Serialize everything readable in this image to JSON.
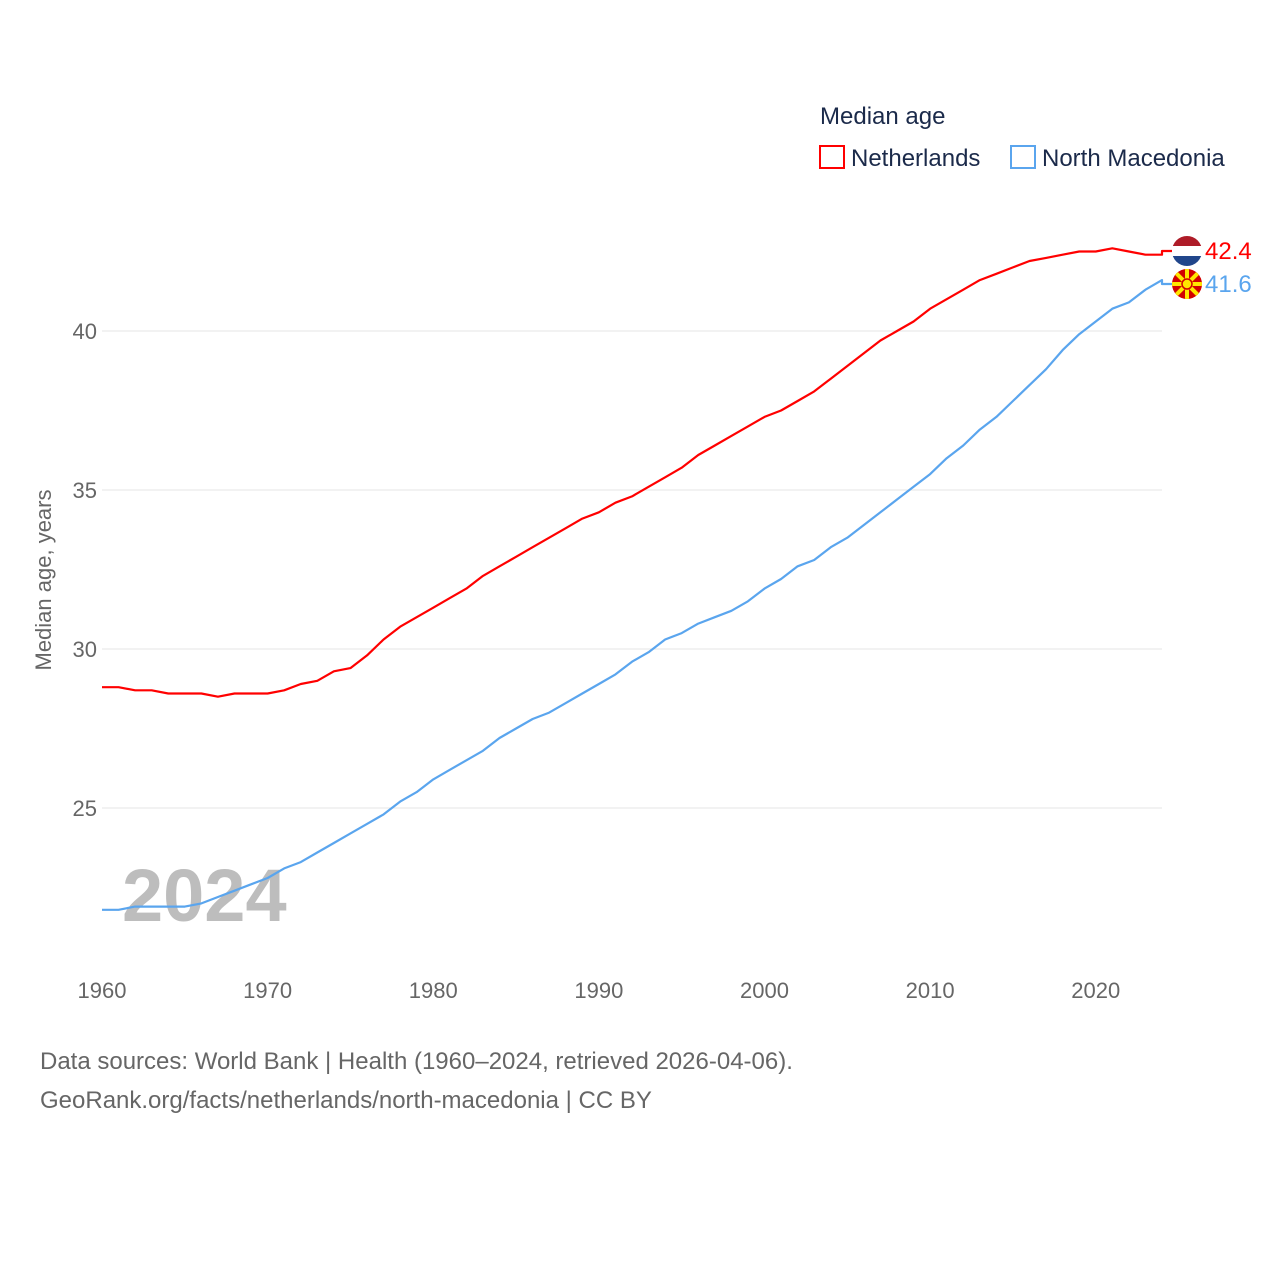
{
  "chart_data": {
    "type": "line",
    "title": "Median age",
    "ylabel": "Median age, years",
    "xlabel": "",
    "xlim": [
      1960,
      2024
    ],
    "ylim": [
      21,
      43
    ],
    "grid": true,
    "legend_position": "top-right",
    "year_overlay": "2024",
    "xticks": [
      "1960",
      "1970",
      "1980",
      "1990",
      "2000",
      "2010",
      "2020"
    ],
    "yticks": [
      "25",
      "30",
      "35",
      "40"
    ],
    "x": [
      1960,
      1961,
      1962,
      1963,
      1964,
      1965,
      1966,
      1967,
      1968,
      1969,
      1970,
      1971,
      1972,
      1973,
      1974,
      1975,
      1976,
      1977,
      1978,
      1979,
      1980,
      1981,
      1982,
      1983,
      1984,
      1985,
      1986,
      1987,
      1988,
      1989,
      1990,
      1991,
      1992,
      1993,
      1994,
      1995,
      1996,
      1997,
      1998,
      1999,
      2000,
      2001,
      2002,
      2003,
      2004,
      2005,
      2006,
      2007,
      2008,
      2009,
      2010,
      2011,
      2012,
      2013,
      2014,
      2015,
      2016,
      2017,
      2018,
      2019,
      2020,
      2021,
      2022,
      2023,
      2024
    ],
    "series": [
      {
        "name": "Netherlands",
        "color": "#ff0000",
        "end_label": "42.4",
        "values": [
          28.8,
          28.8,
          28.7,
          28.7,
          28.6,
          28.6,
          28.6,
          28.5,
          28.6,
          28.6,
          28.6,
          28.7,
          28.9,
          29.0,
          29.3,
          29.4,
          29.8,
          30.3,
          30.7,
          31.0,
          31.3,
          31.6,
          31.9,
          32.3,
          32.6,
          32.9,
          33.2,
          33.5,
          33.8,
          34.1,
          34.3,
          34.6,
          34.8,
          35.1,
          35.4,
          35.7,
          36.1,
          36.4,
          36.7,
          37.0,
          37.3,
          37.5,
          37.8,
          38.1,
          38.5,
          38.9,
          39.3,
          39.7,
          40.0,
          40.3,
          40.7,
          41.0,
          41.3,
          41.6,
          41.8,
          42.0,
          42.2,
          42.3,
          42.4,
          42.5,
          42.5,
          42.6,
          42.5,
          42.4,
          42.4
        ]
      },
      {
        "name": "North Macedonia",
        "color": "#5aa5ee",
        "end_label": "41.6",
        "values": [
          21.8,
          21.8,
          21.9,
          21.9,
          21.9,
          21.9,
          22.0,
          22.2,
          22.4,
          22.6,
          22.8,
          23.1,
          23.3,
          23.6,
          23.9,
          24.2,
          24.5,
          24.8,
          25.2,
          25.5,
          25.9,
          26.2,
          26.5,
          26.8,
          27.2,
          27.5,
          27.8,
          28.0,
          28.3,
          28.6,
          28.9,
          29.2,
          29.6,
          29.9,
          30.3,
          30.5,
          30.8,
          31.0,
          31.2,
          31.5,
          31.9,
          32.2,
          32.6,
          32.8,
          33.2,
          33.5,
          33.9,
          34.3,
          34.7,
          35.1,
          35.5,
          36.0,
          36.4,
          36.9,
          37.3,
          37.8,
          38.3,
          38.8,
          39.4,
          39.9,
          40.3,
          40.7,
          40.9,
          41.3,
          41.6
        ]
      }
    ]
  },
  "footer": {
    "line1": "Data sources: World Bank | Health (1960–2024, retrieved 2026-04-06).",
    "line2": "GeoRank.org/facts/netherlands/north-macedonia | CC BY"
  }
}
